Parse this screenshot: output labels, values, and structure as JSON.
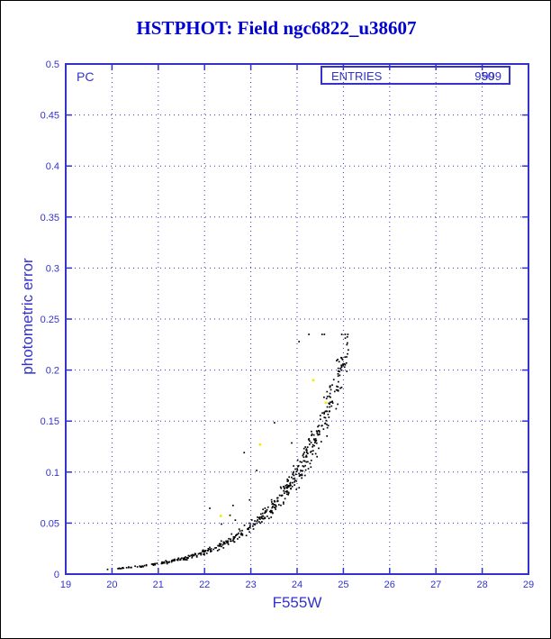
{
  "title": "HSTPHOT: Field ngc6822_u38607",
  "detector_label": "PC",
  "stats": {
    "entries_label": "ENTRIES",
    "entries_values": [
      "999",
      "950"
    ]
  },
  "colors": {
    "frame": "#3333cc",
    "grid": "#3333cc",
    "title": "#0000d0",
    "points": "#000000",
    "outliers": "#f4e800"
  },
  "chart_data": {
    "type": "scatter",
    "title": "HSTPHOT: Field ngc6822_u38607",
    "xlabel": "F555W",
    "ylabel": "photometric error",
    "xlim": [
      19,
      29
    ],
    "ylim": [
      0,
      0.5
    ],
    "x_ticks": [
      19,
      20,
      21,
      22,
      23,
      24,
      25,
      26,
      27,
      28,
      29
    ],
    "y_ticks": [
      0,
      0.05,
      0.1,
      0.15,
      0.2,
      0.25,
      0.3,
      0.35,
      0.4,
      0.45,
      0.5
    ],
    "grid": true,
    "legend": "none",
    "trend": [
      [
        20.0,
        0.005
      ],
      [
        21.0,
        0.01
      ],
      [
        22.0,
        0.021
      ],
      [
        23.0,
        0.044
      ],
      [
        23.5,
        0.063
      ],
      [
        24.0,
        0.094
      ],
      [
        24.5,
        0.137
      ],
      [
        24.8,
        0.17
      ],
      [
        25.0,
        0.2
      ],
      [
        25.1,
        0.215
      ],
      [
        25.15,
        0.225
      ]
    ],
    "generator": {
      "n": 520,
      "seed": 7,
      "x_start": 19.75,
      "x_span": 5.35,
      "x_pow": 0.5,
      "err_base": 0.0042,
      "err_ref": 19.8,
      "err_scale": 1.33,
      "noise": 0.13,
      "outlier_prob": 0.03,
      "y_min": 0.002,
      "y_max": 0.235
    },
    "yellow_points": [
      [
        22.35,
        0.057
      ],
      [
        23.2,
        0.127
      ],
      [
        24.35,
        0.19
      ],
      [
        24.62,
        0.168
      ]
    ]
  }
}
